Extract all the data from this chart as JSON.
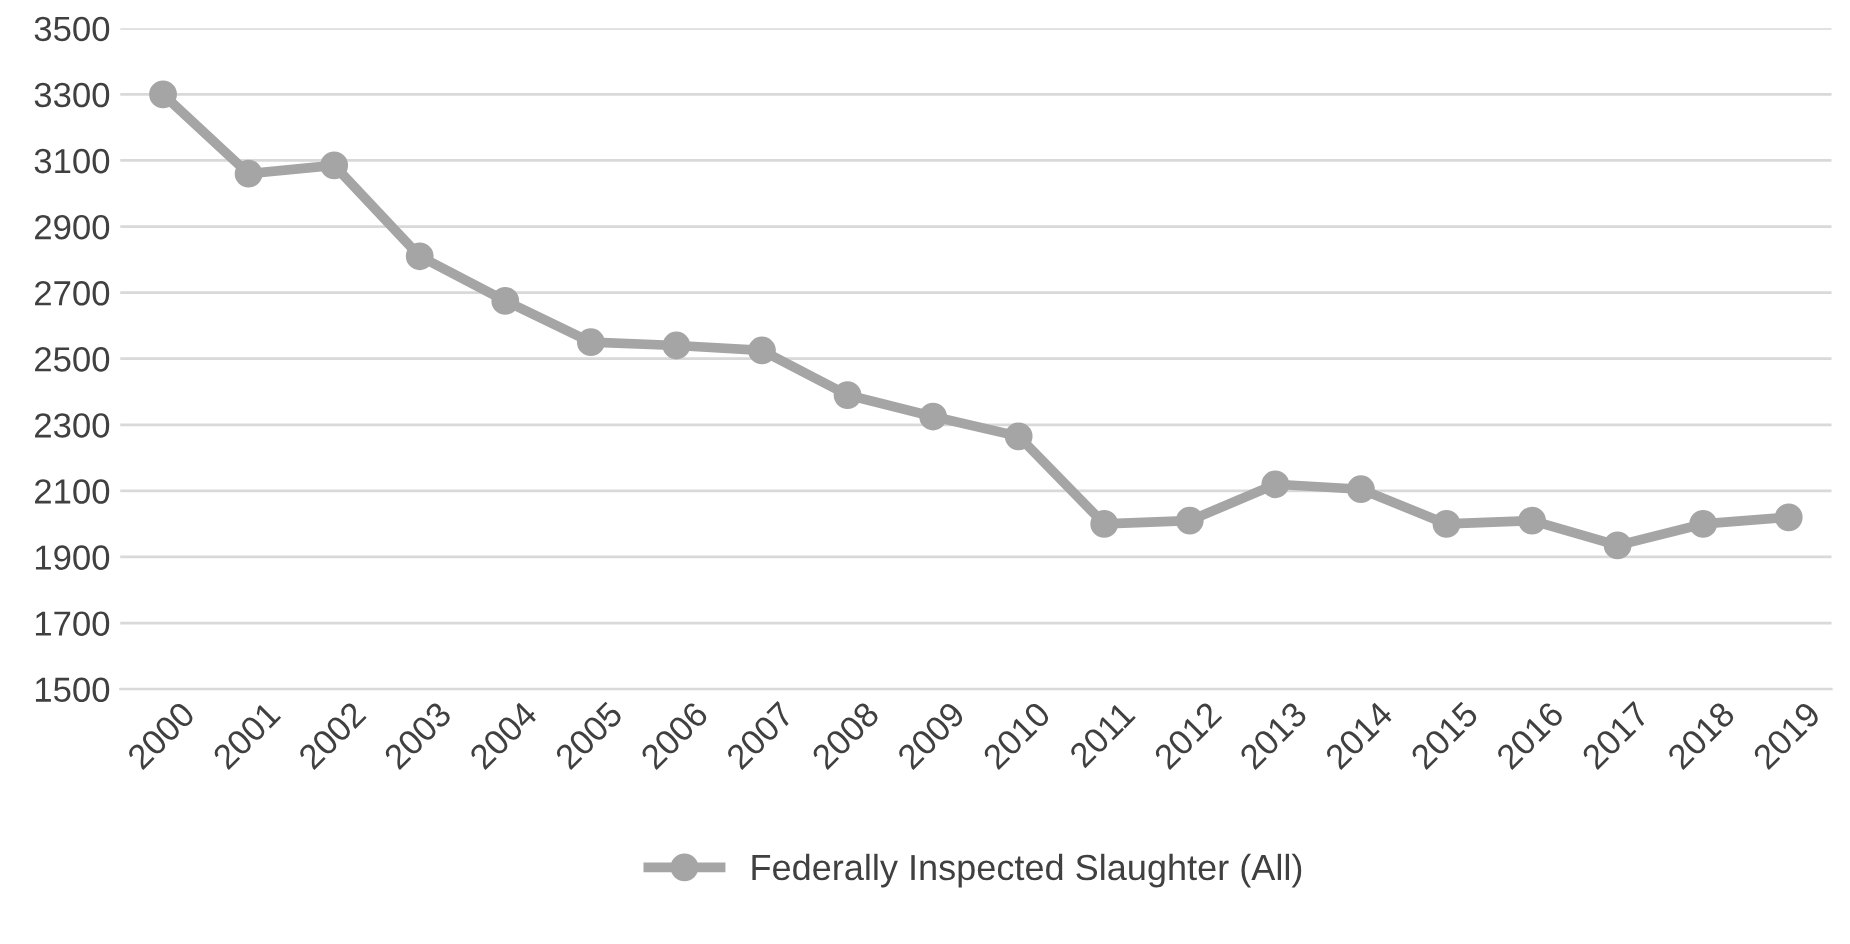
{
  "chart_data": {
    "type": "line",
    "categories": [
      "2000",
      "2001",
      "2002",
      "2003",
      "2004",
      "2005",
      "2006",
      "2007",
      "2008",
      "2009",
      "2010",
      "2011",
      "2012",
      "2013",
      "2014",
      "2015",
      "2016",
      "2017",
      "2018",
      "2019"
    ],
    "series": [
      {
        "name": "Federally Inspected Slaughter (All)",
        "color": "#a5a5a5",
        "values": [
          3300,
          3060,
          3085,
          2810,
          2675,
          2550,
          2540,
          2525,
          2390,
          2325,
          2265,
          2000,
          2010,
          2120,
          2105,
          2000,
          2010,
          1935,
          2000,
          2020
        ]
      }
    ],
    "ylim": [
      1500,
      3500
    ],
    "yticks": [
      1500,
      1700,
      1900,
      2100,
      2300,
      2500,
      2700,
      2900,
      3100,
      3300,
      3500
    ],
    "grid": "y",
    "legend": "bottom",
    "marker": "circle",
    "line_style": "solid"
  }
}
